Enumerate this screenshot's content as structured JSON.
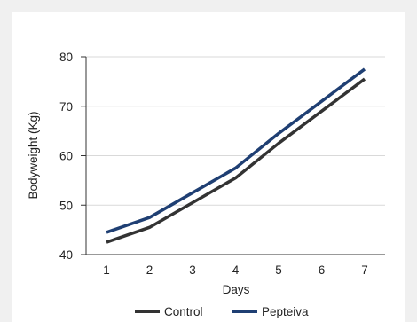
{
  "chart_data": {
    "type": "line",
    "x": [
      1,
      2,
      3,
      4,
      5,
      6,
      7
    ],
    "series": [
      {
        "name": "Control",
        "values": [
          42.5,
          45.5,
          50.5,
          55.5,
          62.5,
          69.0,
          75.5
        ]
      },
      {
        "name": "Pepteiva",
        "values": [
          44.5,
          47.5,
          52.5,
          57.5,
          64.5,
          71.0,
          77.5
        ]
      }
    ],
    "xlabel": "Days",
    "ylabel": "Bodyweight (Kg)",
    "ylim": [
      40,
      80
    ],
    "yticks": [
      40,
      50,
      60,
      70,
      80
    ],
    "xticks": [
      "1",
      "2",
      "3",
      "4",
      "5",
      "6",
      "7"
    ],
    "grid": "horizontal",
    "legend": "bottom",
    "colors": {
      "Control": "#333333",
      "Pepteiva": "#1f3f73",
      "grid": "#d9d9d9",
      "axis": "#333333"
    }
  }
}
